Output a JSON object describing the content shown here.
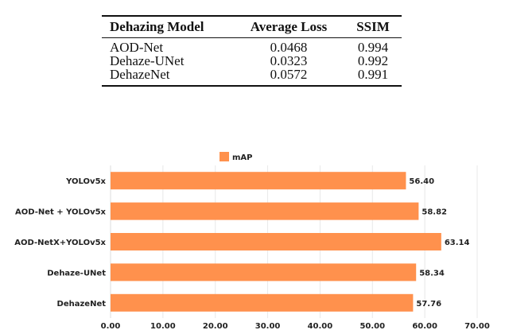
{
  "table": {
    "headers": [
      "Dehazing Model",
      "Average Loss",
      "SSIM"
    ],
    "rows": [
      [
        "AOD-Net",
        "0.0468",
        "0.994"
      ],
      [
        "Dehaze-UNet",
        "0.0323",
        "0.992"
      ],
      [
        "DehazeNet",
        "0.0572",
        "0.991"
      ]
    ]
  },
  "chart_data": {
    "type": "bar",
    "orientation": "horizontal",
    "categories": [
      "YOLOv5x",
      "AOD-Net + YOLOv5x",
      "AOD-NetX+YOLOv5x",
      "Dehaze-UNet",
      "DehazeNet"
    ],
    "series": [
      {
        "name": "mAP",
        "values": [
          56.4,
          58.82,
          63.14,
          58.34,
          57.76
        ],
        "color": "#ff914d"
      }
    ],
    "data_labels": [
      "56.40",
      "58.82",
      "63.14",
      "58.34",
      "57.76"
    ],
    "xlim": [
      0,
      70
    ],
    "xticks": [
      "0.00",
      "10.00",
      "20.00",
      "30.00",
      "40.00",
      "50.00",
      "60.00",
      "70.00"
    ],
    "grid": true,
    "legend": "top"
  }
}
